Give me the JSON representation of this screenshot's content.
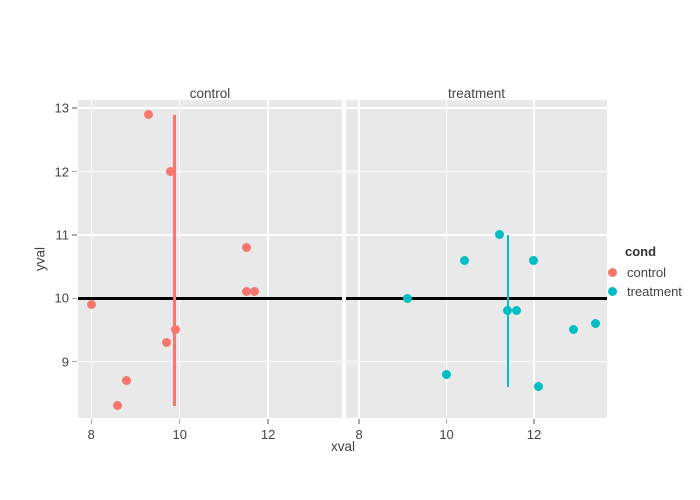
{
  "figure": {
    "legend": {
      "title": "cond",
      "entries": [
        {
          "label": "control",
          "color": "#F8766D"
        },
        {
          "label": "treatment",
          "color": "#00BFC4"
        }
      ]
    }
  },
  "chart_data": {
    "type": "scatter",
    "faceted_by": "cond",
    "xlabel": "xval",
    "ylabel": "yval",
    "xlim": [
      7.7,
      13.67
    ],
    "ylim": [
      8.11,
      13.13
    ],
    "x_ticks": [
      8,
      10,
      12
    ],
    "y_ticks": [
      9,
      10,
      11,
      12,
      13
    ],
    "hline_y": 10,
    "grid": true,
    "legend_position": "right",
    "panel_background": "#e9e9e9",
    "hline_color": "#000000",
    "facets": [
      {
        "title": "control",
        "color": "#F8766D",
        "points": [
          [
            8.0,
            9.9
          ],
          [
            8.6,
            8.3
          ],
          [
            8.8,
            8.7
          ],
          [
            9.3,
            12.9
          ],
          [
            9.7,
            9.3
          ],
          [
            9.8,
            12.0
          ],
          [
            9.9,
            9.5
          ],
          [
            11.5,
            10.1
          ],
          [
            11.5,
            10.8
          ],
          [
            11.7,
            10.1
          ]
        ],
        "vline": {
          "x": 9.88,
          "y0": 8.3,
          "y1": 12.9
        }
      },
      {
        "title": "treatment",
        "color": "#00BFC4",
        "points": [
          [
            9.1,
            10.0
          ],
          [
            10.0,
            8.8
          ],
          [
            10.4,
            10.6
          ],
          [
            11.2,
            11.0
          ],
          [
            11.4,
            9.8
          ],
          [
            11.6,
            9.8
          ],
          [
            12.0,
            10.6
          ],
          [
            12.1,
            8.6
          ],
          [
            12.9,
            9.5
          ],
          [
            13.4,
            9.6
          ]
        ],
        "vline": {
          "x": 11.41,
          "y0": 8.6,
          "y1": 11.0
        }
      }
    ]
  }
}
